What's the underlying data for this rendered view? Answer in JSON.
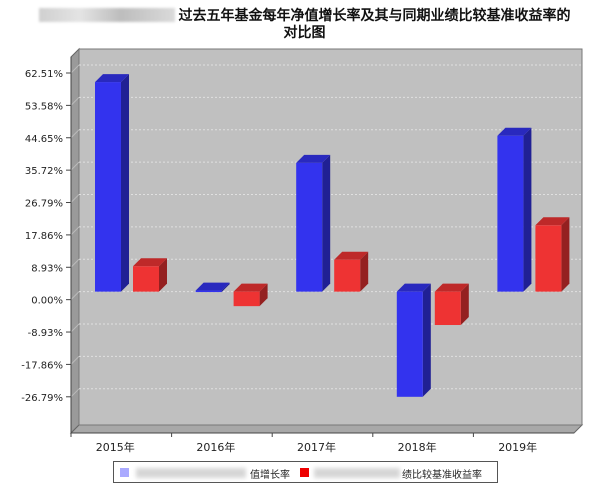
{
  "title": {
    "line1": "过去五年基金每年净值增长率及其与同期业绩比较基准收益率的",
    "line2": "对比图"
  },
  "chart_data": {
    "type": "bar",
    "categories": [
      "2015年",
      "2016年",
      "2017年",
      "2018年",
      "2019年"
    ],
    "series": [
      {
        "name": "值增长率",
        "color": "#3333ee",
        "values": [
          57.8,
          0.3,
          35.5,
          -29.0,
          43.0
        ]
      },
      {
        "name": "绩比较基准收益率",
        "color": "#ee3333",
        "values": [
          7.0,
          -4.0,
          8.8,
          -9.2,
          18.3
        ]
      }
    ],
    "yticks": [
      "62.51%",
      "53.58%",
      "44.65%",
      "35.72%",
      "26.79%",
      "17.86%",
      "8.93%",
      "0.00%",
      "-8.93%",
      "-17.86%",
      "-26.79%"
    ],
    "ylim": [
      -31.26,
      62.51
    ],
    "grid": true,
    "legend_position": "bottom"
  }
}
